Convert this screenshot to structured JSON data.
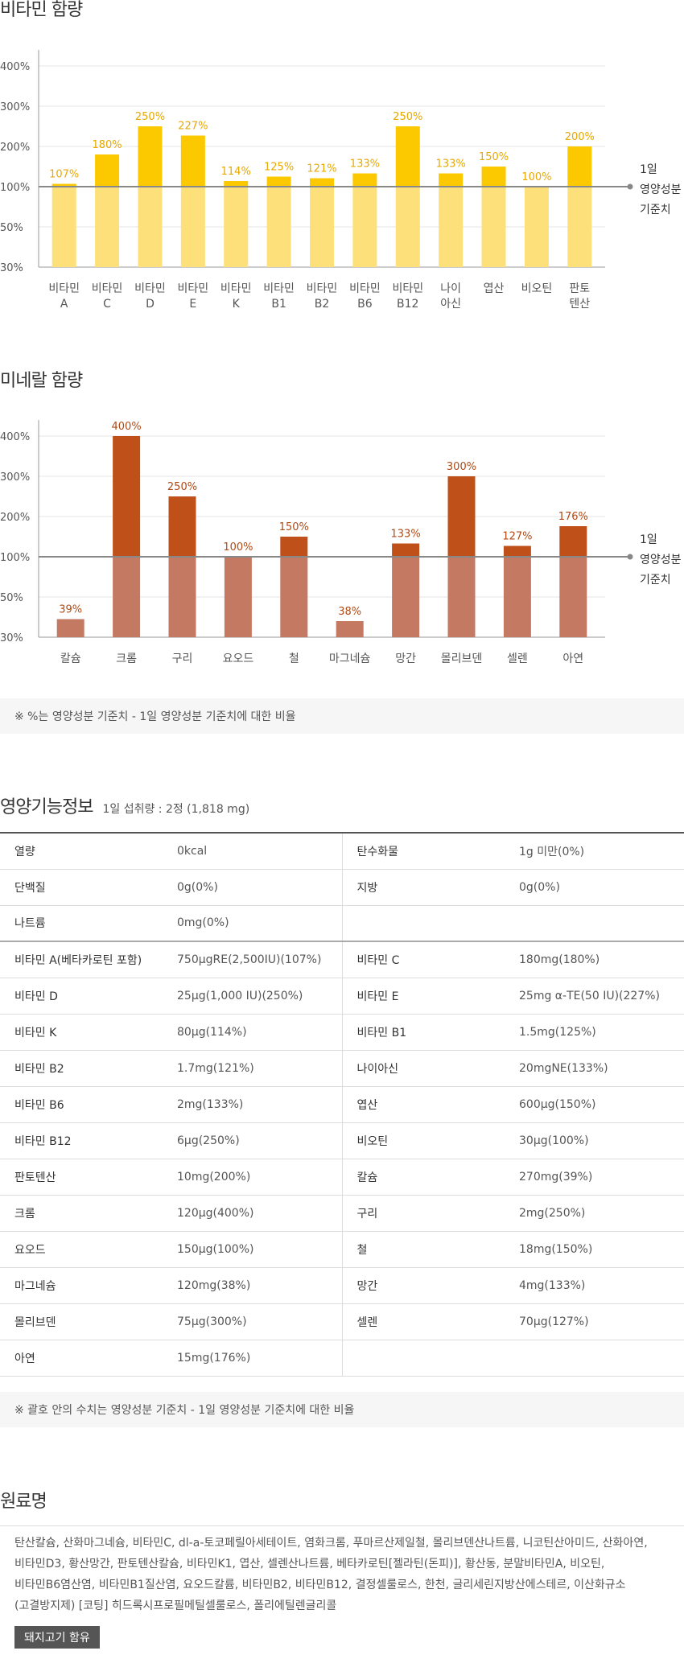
{
  "vitamin_section": {
    "title": "비타민 함량"
  },
  "mineral_section": {
    "title": "미네랄 함량"
  },
  "percent_note": "※ %는 영양성분 기준치 - 1일 영양성분 기준치에 대한 비율",
  "chart_data": [
    {
      "type": "bar",
      "title": "비타민 함량",
      "categories": [
        [
          "비타민",
          "A"
        ],
        [
          "비타민",
          "C"
        ],
        [
          "비타민",
          "D"
        ],
        [
          "비타민",
          "E"
        ],
        [
          "비타민",
          "K"
        ],
        [
          "비타민",
          "B1"
        ],
        [
          "비타민",
          "B2"
        ],
        [
          "비타민",
          "B6"
        ],
        [
          "비타민",
          "B12"
        ],
        [
          "나이",
          "아신"
        ],
        [
          "엽산"
        ],
        [
          "비오틴"
        ],
        [
          "판토",
          "텐산"
        ]
      ],
      "values": [
        107,
        180,
        250,
        227,
        114,
        125,
        121,
        133,
        250,
        133,
        150,
        100,
        200
      ],
      "value_labels": [
        "107%",
        "180%",
        "250%",
        "227%",
        "114%",
        "125%",
        "121%",
        "133%",
        "250%",
        "133%",
        "150%",
        "100%",
        "200%"
      ],
      "y_ticks": [
        "400%",
        "300%",
        "200%",
        "100%",
        "50%",
        "30%"
      ],
      "y_tick_values": [
        400,
        300,
        200,
        100,
        50,
        30
      ],
      "reference": {
        "value": 100,
        "label": [
          "1일",
          "영양성분",
          "기준치"
        ]
      },
      "colors": {
        "bar_base": "#fde07a",
        "bar_over": "#fcc800",
        "value_label": "#e8a800",
        "reference_line": "#888888"
      },
      "grid": true
    },
    {
      "type": "bar",
      "title": "미네랄 함량",
      "categories": [
        [
          "칼슘"
        ],
        [
          "크롬"
        ],
        [
          "구리"
        ],
        [
          "요오드"
        ],
        [
          "철"
        ],
        [
          "마그네슘"
        ],
        [
          "망간"
        ],
        [
          "몰리브덴"
        ],
        [
          "셀렌"
        ],
        [
          "아연"
        ]
      ],
      "values": [
        39,
        400,
        250,
        100,
        150,
        38,
        133,
        300,
        127,
        176
      ],
      "value_labels": [
        "39%",
        "400%",
        "250%",
        "100%",
        "150%",
        "38%",
        "133%",
        "300%",
        "127%",
        "176%"
      ],
      "y_ticks": [
        "400%",
        "300%",
        "200%",
        "100%",
        "50%",
        "30%"
      ],
      "y_tick_values": [
        400,
        300,
        200,
        100,
        50,
        30
      ],
      "reference": {
        "value": 100,
        "label": [
          "1일",
          "영양성분",
          "기준치"
        ]
      },
      "colors": {
        "bar_base": "#c47a62",
        "bar_over": "#c0501a",
        "value_label": "#b04a15",
        "reference_line": "#888888"
      },
      "grid": true
    }
  ],
  "nutrition": {
    "title": "영양기능정보",
    "serving": "1일 섭취량 : 2정 (1,818 mg)",
    "rows": [
      [
        "열량",
        "0kcal",
        "탄수화물",
        "1g 미만(0%)"
      ],
      [
        "단백질",
        "0g(0%)",
        "지방",
        "0g(0%)"
      ],
      [
        "나트륨",
        "0mg(0%)",
        "",
        ""
      ],
      [
        "비타민 A(베타카로틴 포함)",
        "750μgRE(2,500IU)(107%)",
        "비타민 C",
        "180mg(180%)"
      ],
      [
        "비타민 D",
        "25μg(1,000 IU)(250%)",
        "비타민 E",
        "25mg α-TE(50 IU)(227%)"
      ],
      [
        "비타민 K",
        "80μg(114%)",
        "비타민 B1",
        "1.5mg(125%)"
      ],
      [
        "비타민 B2",
        "1.7mg(121%)",
        "나이아신",
        "20mgNE(133%)"
      ],
      [
        "비타민 B6",
        "2mg(133%)",
        "엽산",
        "600μg(150%)"
      ],
      [
        "비타민 B12",
        "6μg(250%)",
        "비오틴",
        "30μg(100%)"
      ],
      [
        "판토텐산",
        "10mg(200%)",
        "칼슘",
        "270mg(39%)"
      ],
      [
        "크롬",
        "120μg(400%)",
        "구리",
        "2mg(250%)"
      ],
      [
        "요오드",
        "150μg(100%)",
        "철",
        "18mg(150%)"
      ],
      [
        "마그네슘",
        "120mg(38%)",
        "망간",
        "4mg(133%)"
      ],
      [
        "몰리브덴",
        "75μg(300%)",
        "셀렌",
        "70μg(127%)"
      ],
      [
        "아연",
        "15mg(176%)",
        "",
        ""
      ]
    ],
    "note": "※ 괄호 안의 수치는 영양성분 기준치 - 1일 영양성분 기준치에 대한 비율"
  },
  "ingredients": {
    "title": "원료명",
    "text": "탄산칼슘, 산화마그네슘, 비타민C, dl-a-토코페릴아세테이트, 염화크롬, 푸마르산제일철, 몰리브덴산나트륨, 니코틴산아미드, 산화아연, 비타민D3, 황산망간, 판토텐산칼슘, 비타민K1, 엽산, 셀렌산나트륨, 베타카로틴[젤라틴(돈피)], 황산동, 분말비타민A, 비오틴, 비타민B6염산염, 비타민B1질산염, 요오드칼륨, 비타민B2, 비타민B12, 결정셀룰로스, 한천, 글리세린지방산에스테르, 이산화규소(고결방지제) [코팅] 히드록시프로필메틸셀룰로스, 폴리에틸렌글리콜",
    "badge": "돼지고기 함유"
  }
}
